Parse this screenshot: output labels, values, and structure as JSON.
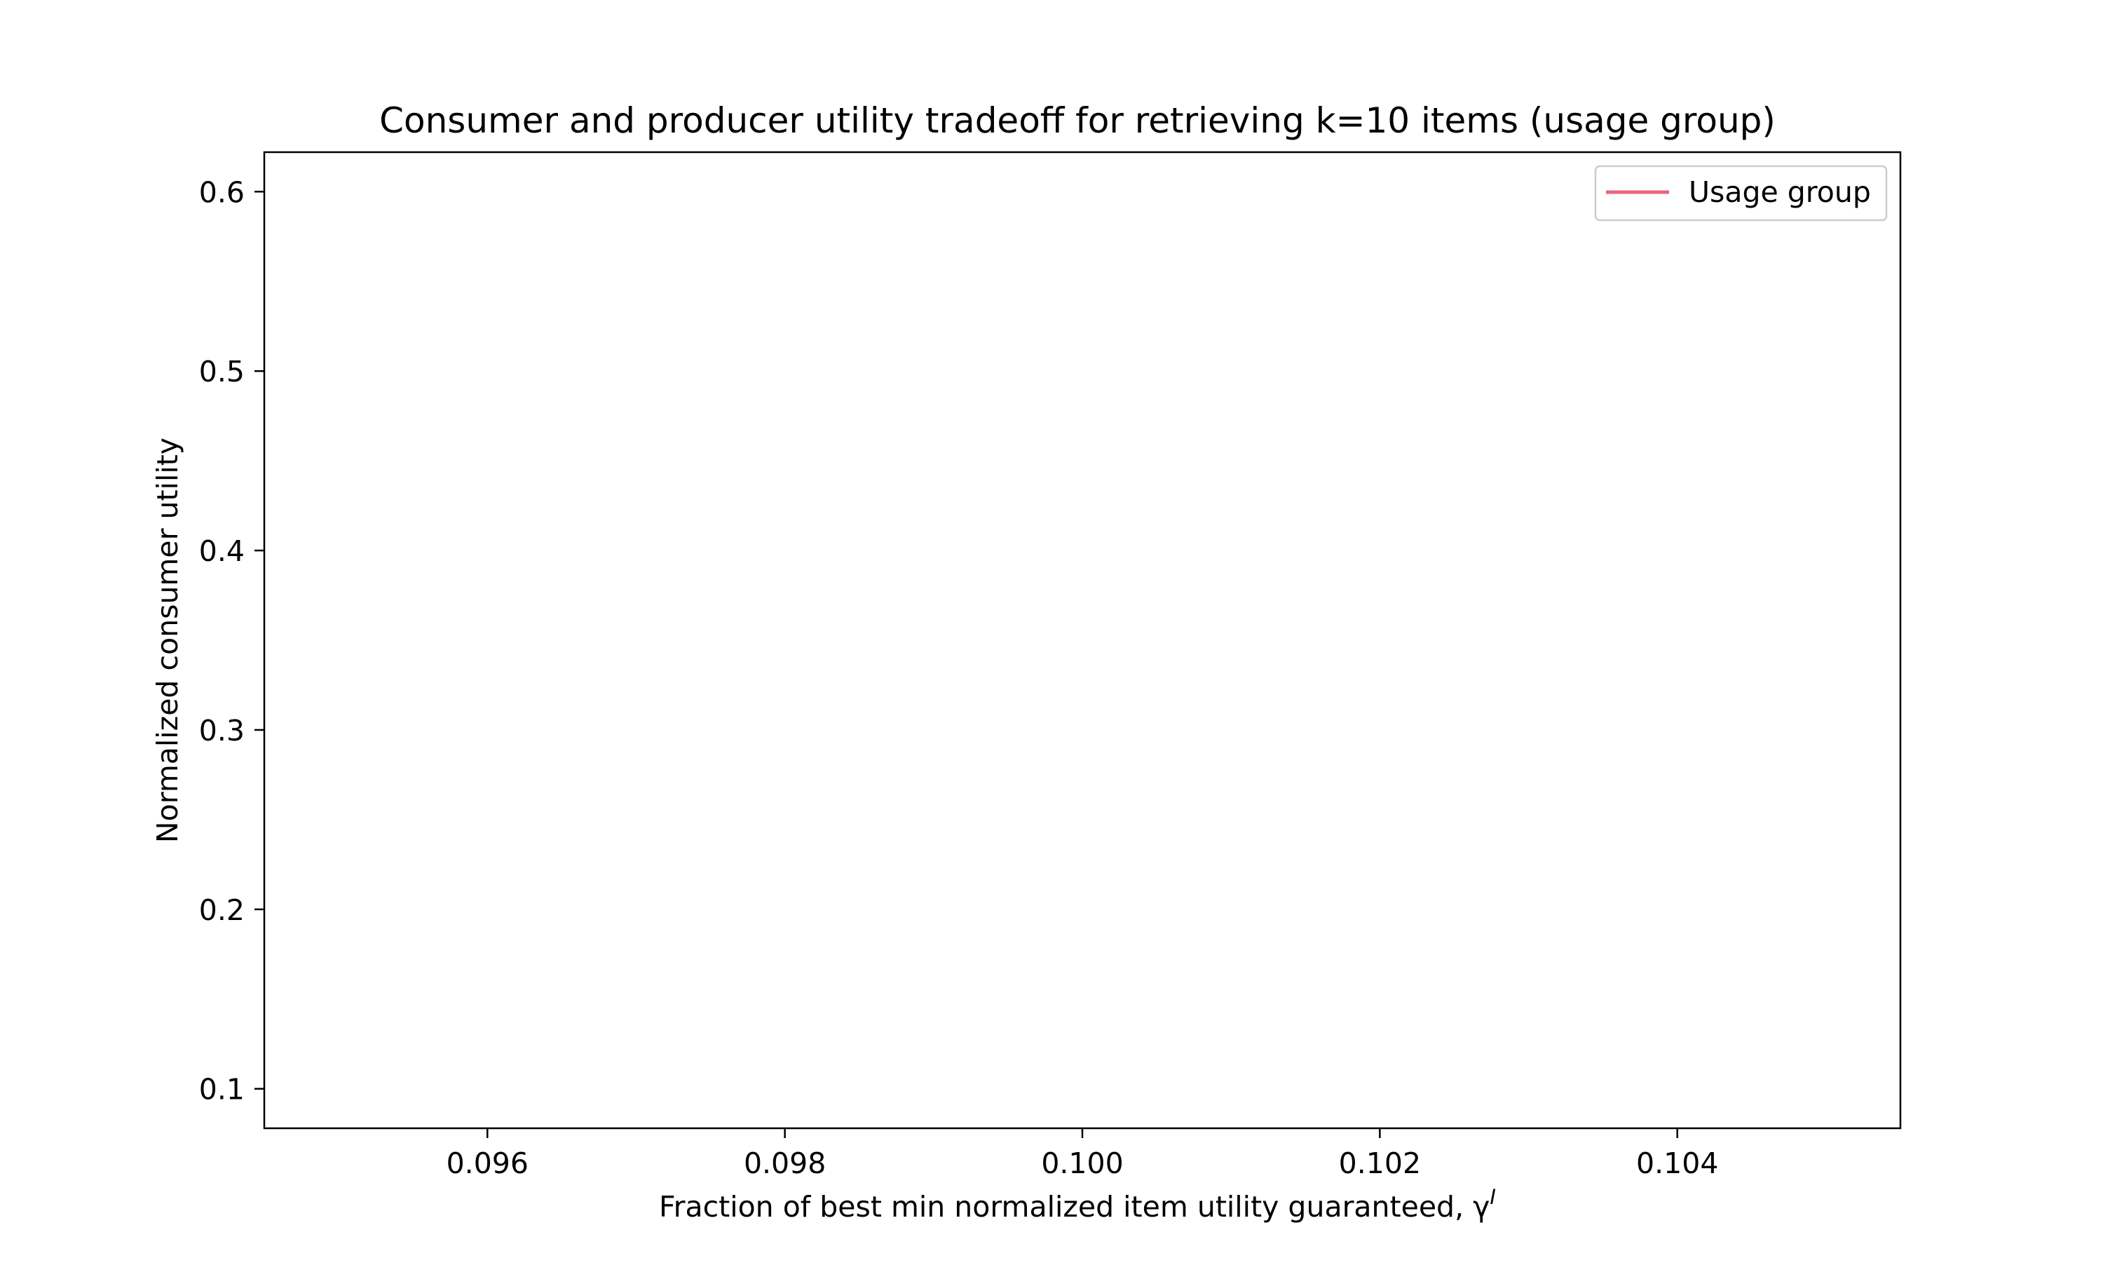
{
  "chart_data": {
    "type": "line",
    "title": "Consumer and producer utility tradeoff for retrieving k=10 items (usage  group)",
    "xlabel": "Fraction of best min normalized item utility guaranteed, γ",
    "xlabel_superscript": "I",
    "ylabel": "Normalized consumer utility",
    "xlim": [
      0.0945,
      0.1055
    ],
    "ylim": [
      0.078,
      0.622
    ],
    "x_ticks": [
      0.096,
      0.098,
      0.1,
      0.102,
      0.104
    ],
    "x_tick_labels": [
      "0.096",
      "0.098",
      "0.100",
      "0.102",
      "0.104"
    ],
    "y_ticks": [
      0.1,
      0.2,
      0.3,
      0.4,
      0.5,
      0.6
    ],
    "y_tick_labels": [
      "0.1",
      "0.2",
      "0.3",
      "0.4",
      "0.5",
      "0.6"
    ],
    "grid": false,
    "legend_position": "top-right",
    "series": [
      {
        "name": "Usage group",
        "color": "#e8677a",
        "x": [],
        "y": []
      }
    ]
  }
}
